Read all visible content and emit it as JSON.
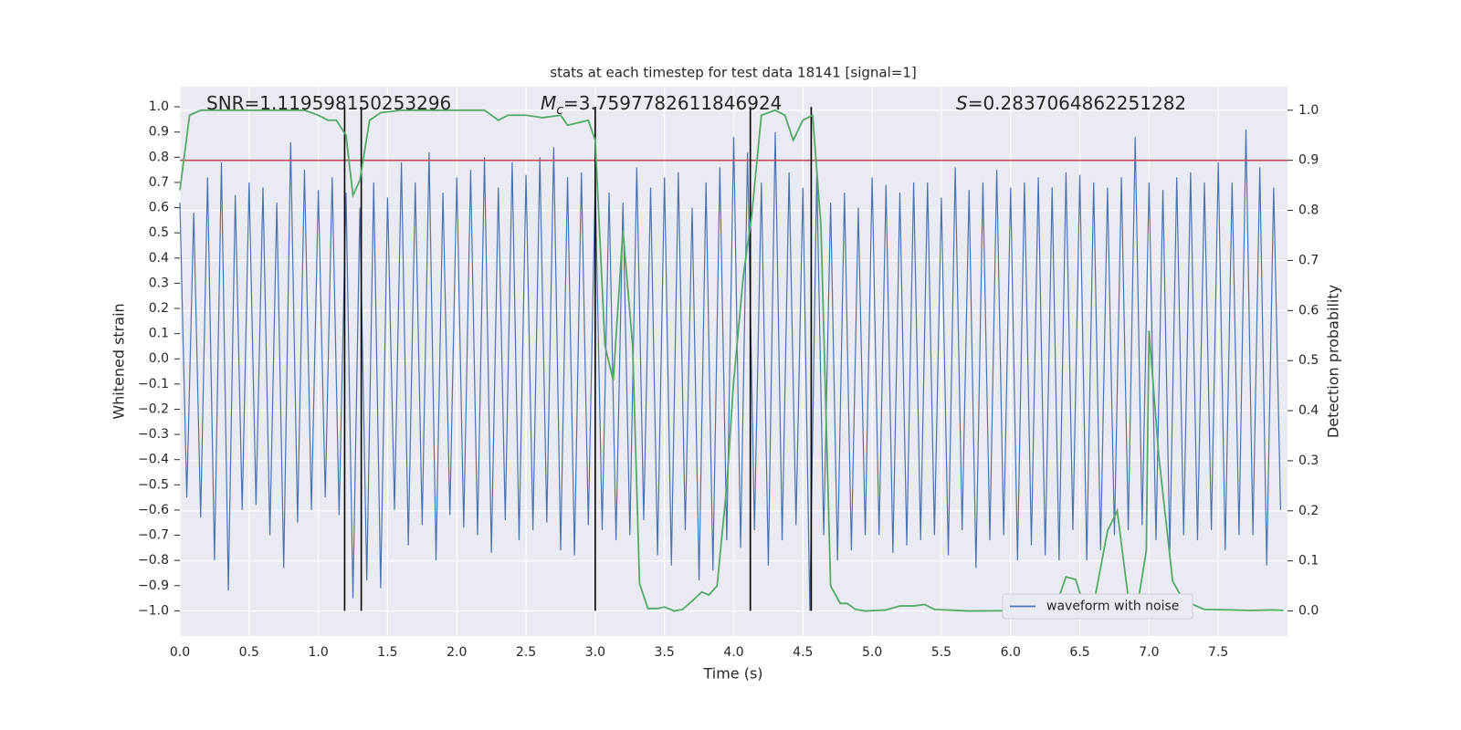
{
  "chart_data": {
    "type": "line",
    "title": "stats at each timestep for test data 18141 [signal=1]",
    "xlabel": "Time (s)",
    "ylabel": "Whitened strain",
    "y2label": "Detection probability",
    "annotations": [
      {
        "text": "SNR=1.119598150253296"
      },
      {
        "symbol": "M",
        "subscript": "c",
        "text": "=3.7597782611846924"
      },
      {
        "symbol": "S",
        "text": "=0.2837064862251282"
      }
    ],
    "xlim": [
      0,
      8.0
    ],
    "ylim": [
      -1.1,
      1.08
    ],
    "y2lim": [
      -0.05,
      1.047
    ],
    "grid": true,
    "legend": "lower right",
    "xticks": [
      {
        "value": 0,
        "label": "0.0"
      },
      {
        "value": 0.5,
        "label": "0.5"
      },
      {
        "value": 1,
        "label": "1.0"
      },
      {
        "value": 1.5,
        "label": "1.5"
      },
      {
        "value": 2,
        "label": "2.0"
      },
      {
        "value": 2.5,
        "label": "2.5"
      },
      {
        "value": 3,
        "label": "3.0"
      },
      {
        "value": 3.5,
        "label": "3.5"
      },
      {
        "value": 4,
        "label": "4.0"
      },
      {
        "value": 4.5,
        "label": "4.5"
      },
      {
        "value": 5,
        "label": "5.0"
      },
      {
        "value": 5.5,
        "label": "5.5"
      },
      {
        "value": 6,
        "label": "6.0"
      },
      {
        "value": 6.5,
        "label": "6.5"
      },
      {
        "value": 7,
        "label": "7.0"
      },
      {
        "value": 7.5,
        "label": "7.5"
      }
    ],
    "yticks": [
      {
        "value": -1,
        "label": "−1.0"
      },
      {
        "value": -0.9,
        "label": "−0.9"
      },
      {
        "value": -0.8,
        "label": "−0.8"
      },
      {
        "value": -0.7,
        "label": "−0.7"
      },
      {
        "value": -0.6,
        "label": "−0.6"
      },
      {
        "value": -0.5,
        "label": "−0.5"
      },
      {
        "value": -0.4,
        "label": "−0.4"
      },
      {
        "value": -0.3,
        "label": "−0.3"
      },
      {
        "value": -0.2,
        "label": "−0.2"
      },
      {
        "value": -0.1,
        "label": "−0.1"
      },
      {
        "value": 0,
        "label": "0.0"
      },
      {
        "value": 0.1,
        "label": "0.1"
      },
      {
        "value": 0.2,
        "label": "0.2"
      },
      {
        "value": 0.3,
        "label": "0.3"
      },
      {
        "value": 0.4,
        "label": "0.4"
      },
      {
        "value": 0.5,
        "label": "0.5"
      },
      {
        "value": 0.6,
        "label": "0.6"
      },
      {
        "value": 0.7,
        "label": "0.7"
      },
      {
        "value": 0.8,
        "label": "0.8"
      },
      {
        "value": 0.9,
        "label": "0.9"
      },
      {
        "value": 1,
        "label": "1.0"
      }
    ],
    "y2ticks": [
      {
        "value": 0,
        "label": "0.0"
      },
      {
        "value": 0.1,
        "label": "0.1"
      },
      {
        "value": 0.2,
        "label": "0.2"
      },
      {
        "value": 0.3,
        "label": "0.3"
      },
      {
        "value": 0.4,
        "label": "0.4"
      },
      {
        "value": 0.5,
        "label": "0.5"
      },
      {
        "value": 0.6,
        "label": "0.6"
      },
      {
        "value": 0.7,
        "label": "0.7"
      },
      {
        "value": 0.8,
        "label": "0.8"
      },
      {
        "value": 0.9,
        "label": "0.9"
      },
      {
        "value": 1,
        "label": "1.0"
      }
    ],
    "threshold": {
      "value": 0.9,
      "axis": "y2",
      "color": "#c44e52"
    },
    "vlines": {
      "x": [
        1.19,
        1.31,
        3.0,
        4.12,
        4.56
      ],
      "range": [
        -1.0,
        1.0
      ],
      "color": "#000000"
    },
    "series": [
      {
        "name": "waveform with noise",
        "color": "#4c72b0",
        "x": [
          0,
          0.05,
          0.1,
          0.15,
          0.2,
          0.25,
          0.3,
          0.35,
          0.4,
          0.45,
          0.5,
          0.55,
          0.6,
          0.65,
          0.7,
          0.75,
          0.8,
          0.85,
          0.9,
          0.95,
          1,
          1.05,
          1.1,
          1.15,
          1.2,
          1.25,
          1.3,
          1.35,
          1.4,
          1.45,
          1.5,
          1.55,
          1.6,
          1.65,
          1.7,
          1.75,
          1.8,
          1.85,
          1.9,
          1.95,
          2,
          2.05,
          2.1,
          2.15,
          2.2,
          2.25,
          2.3,
          2.35,
          2.4,
          2.45,
          2.5,
          2.55,
          2.6,
          2.65,
          2.7,
          2.75,
          2.8,
          2.85,
          2.9,
          2.95,
          3,
          3.05,
          3.1,
          3.15,
          3.2,
          3.25,
          3.3,
          3.35,
          3.4,
          3.45,
          3.5,
          3.55,
          3.6,
          3.65,
          3.7,
          3.75,
          3.8,
          3.85,
          3.9,
          3.95,
          4,
          4.05,
          4.1,
          4.15,
          4.2,
          4.25,
          4.3,
          4.35,
          4.4,
          4.45,
          4.5,
          4.55,
          4.6,
          4.65,
          4.7,
          4.75,
          4.8,
          4.85,
          4.9,
          4.95,
          5,
          5.05,
          5.1,
          5.15,
          5.2,
          5.25,
          5.3,
          5.35,
          5.4,
          5.45,
          5.5,
          5.55,
          5.6,
          5.65,
          5.7,
          5.75,
          5.8,
          5.85,
          5.9,
          5.95,
          6,
          6.05,
          6.1,
          6.15,
          6.2,
          6.25,
          6.3,
          6.35,
          6.4,
          6.45,
          6.5,
          6.55,
          6.6,
          6.65,
          6.7,
          6.75,
          6.8,
          6.85,
          6.9,
          6.95,
          7,
          7.05,
          7.1,
          7.15,
          7.2,
          7.25,
          7.3,
          7.35,
          7.4,
          7.45,
          7.5,
          7.55,
          7.6,
          7.65,
          7.7,
          7.75,
          7.8,
          7.85,
          7.9,
          7.95
        ],
        "values": [
          0.62,
          -0.55,
          0.58,
          -0.63,
          0.72,
          -0.8,
          0.78,
          -0.92,
          0.65,
          -0.6,
          0.7,
          -0.58,
          0.68,
          -0.7,
          0.62,
          -0.83,
          0.86,
          -0.65,
          0.75,
          -0.6,
          0.67,
          -0.55,
          0.72,
          -0.62,
          0.66,
          -0.95,
          0.6,
          -0.88,
          0.7,
          -0.91,
          0.64,
          -0.6,
          0.78,
          -0.74,
          0.7,
          -0.66,
          0.82,
          -0.8,
          0.66,
          -0.62,
          0.72,
          -0.67,
          0.75,
          -0.7,
          0.8,
          -0.77,
          0.68,
          -0.64,
          0.78,
          -0.72,
          0.73,
          -0.68,
          0.8,
          -0.65,
          0.84,
          -0.76,
          0.72,
          -0.78,
          0.74,
          -0.66,
          0.7,
          -0.68,
          0.66,
          -0.72,
          0.62,
          -0.7,
          0.76,
          -0.64,
          0.68,
          -0.78,
          0.72,
          -0.82,
          0.74,
          -0.68,
          0.6,
          -0.88,
          0.7,
          -0.84,
          0.76,
          -0.72,
          0.88,
          -0.75,
          0.82,
          -0.68,
          0.7,
          -0.82,
          0.9,
          -0.72,
          0.74,
          -0.66,
          0.68,
          -1.0,
          0.73,
          -0.7,
          0.62,
          -0.8,
          0.66,
          -0.76,
          0.6,
          -0.7,
          0.72,
          -0.7,
          0.69,
          -0.77,
          0.66,
          -0.74,
          0.7,
          -0.72,
          0.7,
          -0.7,
          0.64,
          -0.78,
          0.76,
          -0.68,
          0.67,
          -0.83,
          0.7,
          -0.72,
          0.75,
          -0.7,
          0.68,
          -0.8,
          0.7,
          -0.74,
          0.72,
          -0.78,
          0.68,
          -0.8,
          0.74,
          -0.68,
          0.73,
          -0.8,
          0.7,
          -0.76,
          0.68,
          -0.7,
          0.72,
          -0.68,
          0.88,
          -0.66,
          0.7,
          -0.72,
          0.67,
          -0.76,
          0.72,
          -0.7,
          0.74,
          -0.72,
          0.7,
          -0.68,
          0.78,
          -0.76,
          0.7,
          -0.7,
          0.91,
          -0.7,
          0.76,
          -0.82,
          0.68,
          -0.6
        ]
      },
      {
        "color": "#55a868",
        "axis": "y2",
        "x": [
          0,
          0.07,
          0.15,
          0.9,
          1.0,
          1.07,
          1.13,
          1.2,
          1.25,
          1.3,
          1.37,
          1.45,
          1.6,
          2.2,
          2.3,
          2.37,
          2.5,
          2.62,
          2.75,
          2.8,
          2.95,
          3.0,
          3.07,
          3.13,
          3.2,
          3.27,
          3.32,
          3.38,
          3.45,
          3.5,
          3.57,
          3.63,
          3.7,
          3.77,
          3.82,
          3.88,
          3.95,
          4.0,
          4.07,
          4.13,
          4.2,
          4.3,
          4.37,
          4.43,
          4.5,
          4.57,
          4.63,
          4.7,
          4.77,
          4.82,
          4.88,
          4.95,
          5.1,
          5.2,
          5.3,
          5.38,
          5.45,
          5.7,
          6.2,
          6.32,
          6.4,
          6.47,
          6.53,
          6.6,
          6.7,
          6.77,
          6.85,
          6.92,
          6.98,
          7.0,
          7.07,
          7.17,
          7.23,
          7.3,
          7.4,
          7.6,
          7.73,
          7.9,
          7.97
        ],
        "values": [
          0.84,
          0.99,
          1.0,
          1.0,
          0.99,
          0.98,
          0.98,
          0.95,
          0.83,
          0.86,
          0.98,
          0.995,
          1.0,
          1.0,
          0.98,
          0.99,
          0.99,
          0.985,
          0.99,
          0.97,
          0.98,
          0.94,
          0.53,
          0.46,
          0.76,
          0.53,
          0.055,
          0.005,
          0.005,
          0.008,
          0.0,
          0.003,
          0.02,
          0.038,
          0.032,
          0.05,
          0.25,
          0.46,
          0.67,
          0.79,
          0.99,
          1.0,
          0.99,
          0.94,
          0.98,
          0.99,
          0.77,
          0.05,
          0.015,
          0.015,
          0.003,
          0.0,
          0.002,
          0.01,
          0.01,
          0.013,
          0.003,
          0.0,
          0.001,
          0.005,
          0.068,
          0.063,
          0.01,
          0.013,
          0.16,
          0.2,
          0.026,
          0.017,
          0.12,
          0.56,
          0.31,
          0.06,
          0.03,
          0.015,
          0.003,
          0.002,
          0.001,
          0.002,
          0.001
        ]
      }
    ]
  }
}
